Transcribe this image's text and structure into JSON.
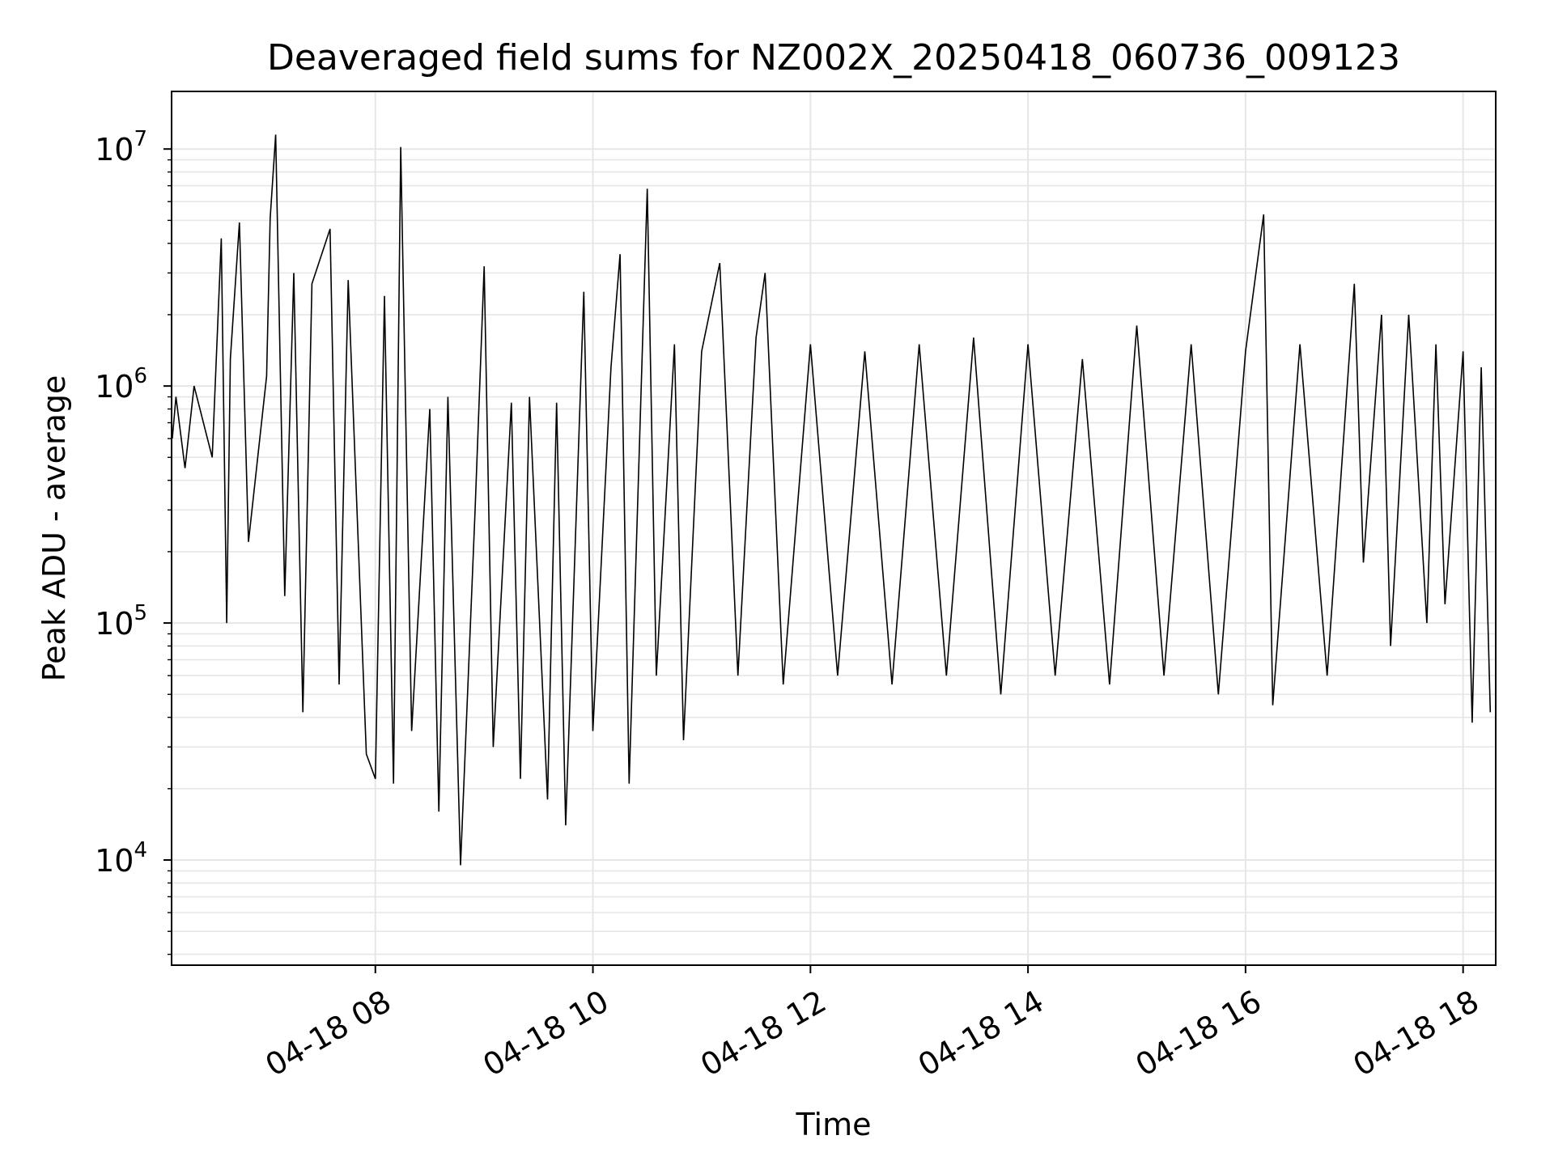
{
  "chart_data": {
    "type": "line",
    "title": "Deaveraged field sums for NZ002X_20250418_060736_009123",
    "xlabel": "Time",
    "ylabel": "Peak ADU - average",
    "xscale": "time",
    "yscale": "log",
    "xlim": [
      "2025-04-18 06:07:36",
      "2025-04-18 18:18:00"
    ],
    "ylim": [
      3600,
      17500000
    ],
    "x_ticks": [
      "04-18 08",
      "04-18 10",
      "04-18 12",
      "04-18 14",
      "04-18 16",
      "04-18 18"
    ],
    "y_ticks": [
      {
        "base": "10",
        "exp": "4",
        "value": 10000
      },
      {
        "base": "10",
        "exp": "5",
        "value": 100000
      },
      {
        "base": "10",
        "exp": "6",
        "value": 1000000
      },
      {
        "base": "10",
        "exp": "7",
        "value": 10000000
      }
    ],
    "grid": true,
    "line_color": "#000000",
    "grid_color": "#e6e6e6",
    "series": [
      {
        "values": [
          [
            "2025-04-18 06:08",
            600000
          ],
          [
            "2025-04-18 06:10",
            900000
          ],
          [
            "2025-04-18 06:15",
            450000
          ],
          [
            "2025-04-18 06:20",
            1000000
          ],
          [
            "2025-04-18 06:30",
            500000
          ],
          [
            "2025-04-18 06:35",
            4200000
          ],
          [
            "2025-04-18 06:38",
            100000
          ],
          [
            "2025-04-18 06:40",
            1300000
          ],
          [
            "2025-04-18 06:45",
            4900000
          ],
          [
            "2025-04-18 06:50",
            220000
          ],
          [
            "2025-04-18 07:00",
            1100000
          ],
          [
            "2025-04-18 07:02",
            5100000
          ],
          [
            "2025-04-18 07:05",
            11500000
          ],
          [
            "2025-04-18 07:10",
            130000
          ],
          [
            "2025-04-18 07:15",
            3000000
          ],
          [
            "2025-04-18 07:20",
            42000
          ],
          [
            "2025-04-18 07:25",
            2700000
          ],
          [
            "2025-04-18 07:35",
            4600000
          ],
          [
            "2025-04-18 07:40",
            55000
          ],
          [
            "2025-04-18 07:45",
            2800000
          ],
          [
            "2025-04-18 07:55",
            28000
          ],
          [
            "2025-04-18 08:00",
            22000
          ],
          [
            "2025-04-18 08:05",
            2400000
          ],
          [
            "2025-04-18 08:10",
            21000
          ],
          [
            "2025-04-18 08:14",
            10200000
          ],
          [
            "2025-04-18 08:20",
            35000
          ],
          [
            "2025-04-18 08:30",
            800000
          ],
          [
            "2025-04-18 08:35",
            16000
          ],
          [
            "2025-04-18 08:40",
            900000
          ],
          [
            "2025-04-18 08:47",
            9500
          ],
          [
            "2025-04-18 08:55",
            300000
          ],
          [
            "2025-04-18 09:00",
            3200000
          ],
          [
            "2025-04-18 09:05",
            30000
          ],
          [
            "2025-04-18 09:15",
            850000
          ],
          [
            "2025-04-18 09:20",
            22000
          ],
          [
            "2025-04-18 09:25",
            900000
          ],
          [
            "2025-04-18 09:35",
            18000
          ],
          [
            "2025-04-18 09:40",
            850000
          ],
          [
            "2025-04-18 09:45",
            14000
          ],
          [
            "2025-04-18 09:55",
            2500000
          ],
          [
            "2025-04-18 10:00",
            35000
          ],
          [
            "2025-04-18 10:10",
            1200000
          ],
          [
            "2025-04-18 10:15",
            3600000
          ],
          [
            "2025-04-18 10:20",
            21000
          ],
          [
            "2025-04-18 10:30",
            6800000
          ],
          [
            "2025-04-18 10:35",
            60000
          ],
          [
            "2025-04-18 10:45",
            1500000
          ],
          [
            "2025-04-18 10:50",
            32000
          ],
          [
            "2025-04-18 11:00",
            1400000
          ],
          [
            "2025-04-18 11:10",
            3300000
          ],
          [
            "2025-04-18 11:20",
            60000
          ],
          [
            "2025-04-18 11:30",
            1600000
          ],
          [
            "2025-04-18 11:35",
            3000000
          ],
          [
            "2025-04-18 11:45",
            55000
          ],
          [
            "2025-04-18 12:00",
            1500000
          ],
          [
            "2025-04-18 12:15",
            60000
          ],
          [
            "2025-04-18 12:30",
            1400000
          ],
          [
            "2025-04-18 12:45",
            55000
          ],
          [
            "2025-04-18 13:00",
            1500000
          ],
          [
            "2025-04-18 13:15",
            60000
          ],
          [
            "2025-04-18 13:30",
            1600000
          ],
          [
            "2025-04-18 13:45",
            50000
          ],
          [
            "2025-04-18 14:00",
            1500000
          ],
          [
            "2025-04-18 14:15",
            60000
          ],
          [
            "2025-04-18 14:30",
            1300000
          ],
          [
            "2025-04-18 14:45",
            55000
          ],
          [
            "2025-04-18 15:00",
            1800000
          ],
          [
            "2025-04-18 15:15",
            60000
          ],
          [
            "2025-04-18 15:30",
            1500000
          ],
          [
            "2025-04-18 15:45",
            50000
          ],
          [
            "2025-04-18 16:00",
            1400000
          ],
          [
            "2025-04-18 16:10",
            5300000
          ],
          [
            "2025-04-18 16:15",
            45000
          ],
          [
            "2025-04-18 16:30",
            1500000
          ],
          [
            "2025-04-18 16:45",
            60000
          ],
          [
            "2025-04-18 17:00",
            2700000
          ],
          [
            "2025-04-18 17:05",
            180000
          ],
          [
            "2025-04-18 17:15",
            2000000
          ],
          [
            "2025-04-18 17:20",
            80000
          ],
          [
            "2025-04-18 17:30",
            2000000
          ],
          [
            "2025-04-18 17:40",
            100000
          ],
          [
            "2025-04-18 17:45",
            1500000
          ],
          [
            "2025-04-18 17:50",
            120000
          ],
          [
            "2025-04-18 18:00",
            1400000
          ],
          [
            "2025-04-18 18:05",
            38000
          ],
          [
            "2025-04-18 18:10",
            1200000
          ],
          [
            "2025-04-18 18:15",
            42000
          ]
        ]
      }
    ]
  }
}
